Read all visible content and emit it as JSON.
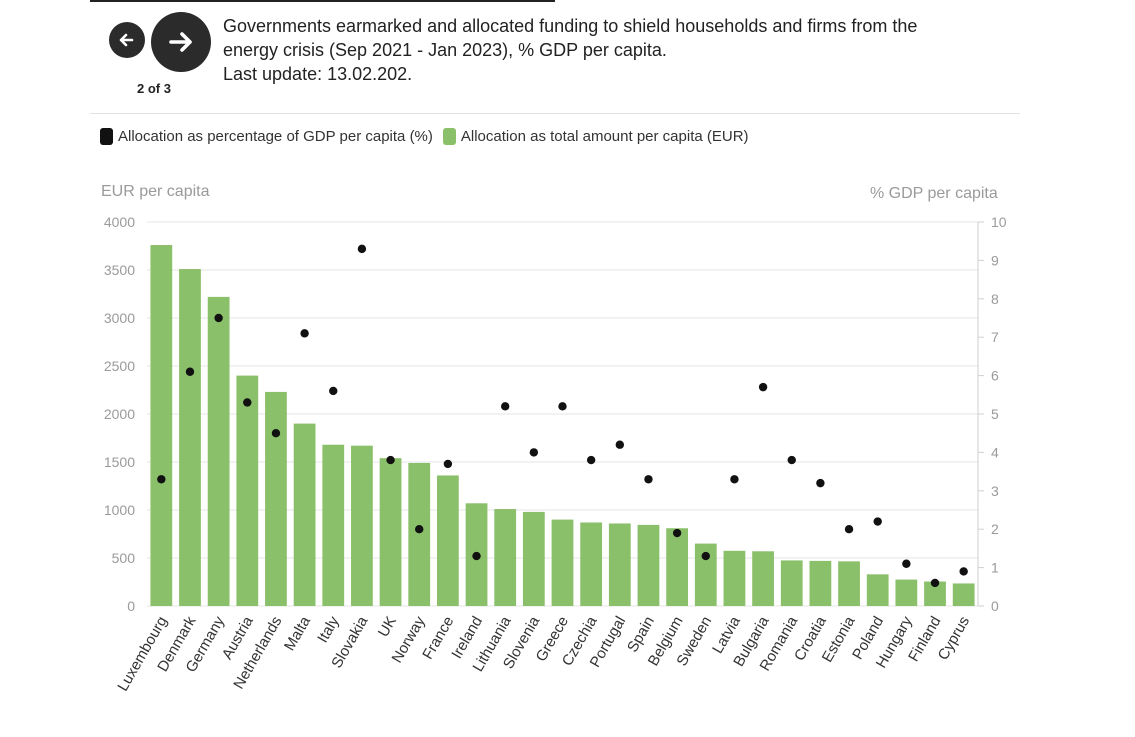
{
  "header": {
    "title_line1": "Governments earmarked and allocated funding to shield households and firms from the",
    "title_line2": "energy crisis (Sep 2021 - Jan 2023), % GDP per capita.",
    "last_update": "Last update: 13.02.202."
  },
  "nav": {
    "pager": "2 of 3",
    "prev_icon": "arrow-left-icon",
    "next_icon": "arrow-right-icon"
  },
  "colors": {
    "bar": "#8bc06a",
    "dot": "#111111",
    "grid": "#e6e6e6",
    "tick": "#9a9a9a",
    "label": "#333333"
  },
  "chart_data": {
    "type": "bar",
    "legend": [
      {
        "label": "Allocation as percentage of GDP per capita (%)",
        "color": "#111111"
      },
      {
        "label": "Allocation as total amount per capita (EUR)",
        "color": "#8bc06a"
      }
    ],
    "left_axis_title": "EUR per capita",
    "right_axis_title": "% GDP per capita",
    "ylim_left": [
      0,
      4000
    ],
    "yticks_left": [
      0,
      500,
      1000,
      1500,
      2000,
      2500,
      3000,
      3500,
      4000
    ],
    "ylim_right": [
      0,
      10
    ],
    "yticks_right": [
      0,
      1,
      2,
      3,
      4,
      5,
      6,
      7,
      8,
      9,
      10
    ],
    "categories": [
      "Luxembourg",
      "Denmark",
      "Germany",
      "Austria",
      "Netherlands",
      "Malta",
      "Italy",
      "Slovakia",
      "UK",
      "Norway",
      "France",
      "Ireland",
      "Lithuania",
      "Slovenia",
      "Greece",
      "Czechia",
      "Portugal",
      "Spain",
      "Belgium",
      "Sweden",
      "Latvia",
      "Bulgaria",
      "Romania",
      "Croatia",
      "Estonia",
      "Poland",
      "Hungary",
      "Finland",
      "Cyprus"
    ],
    "series": [
      {
        "name": "Allocation as total amount per capita (EUR)",
        "type": "bar",
        "values": [
          3760,
          3510,
          3220,
          2400,
          2230,
          1900,
          1680,
          1670,
          1540,
          1490,
          1360,
          1070,
          1010,
          980,
          900,
          870,
          860,
          845,
          810,
          650,
          575,
          570,
          475,
          470,
          465,
          330,
          275,
          255,
          235
        ]
      },
      {
        "name": "Allocation as percentage of GDP per capita (%)",
        "type": "scatter",
        "values": [
          3.3,
          6.1,
          7.5,
          5.3,
          4.5,
          7.1,
          5.6,
          9.3,
          3.8,
          2.0,
          3.7,
          1.3,
          5.2,
          4.0,
          5.2,
          3.8,
          4.2,
          3.3,
          1.9,
          1.3,
          3.3,
          5.7,
          3.8,
          3.2,
          2.0,
          2.2,
          1.1,
          0.6,
          0.9
        ]
      }
    ]
  }
}
